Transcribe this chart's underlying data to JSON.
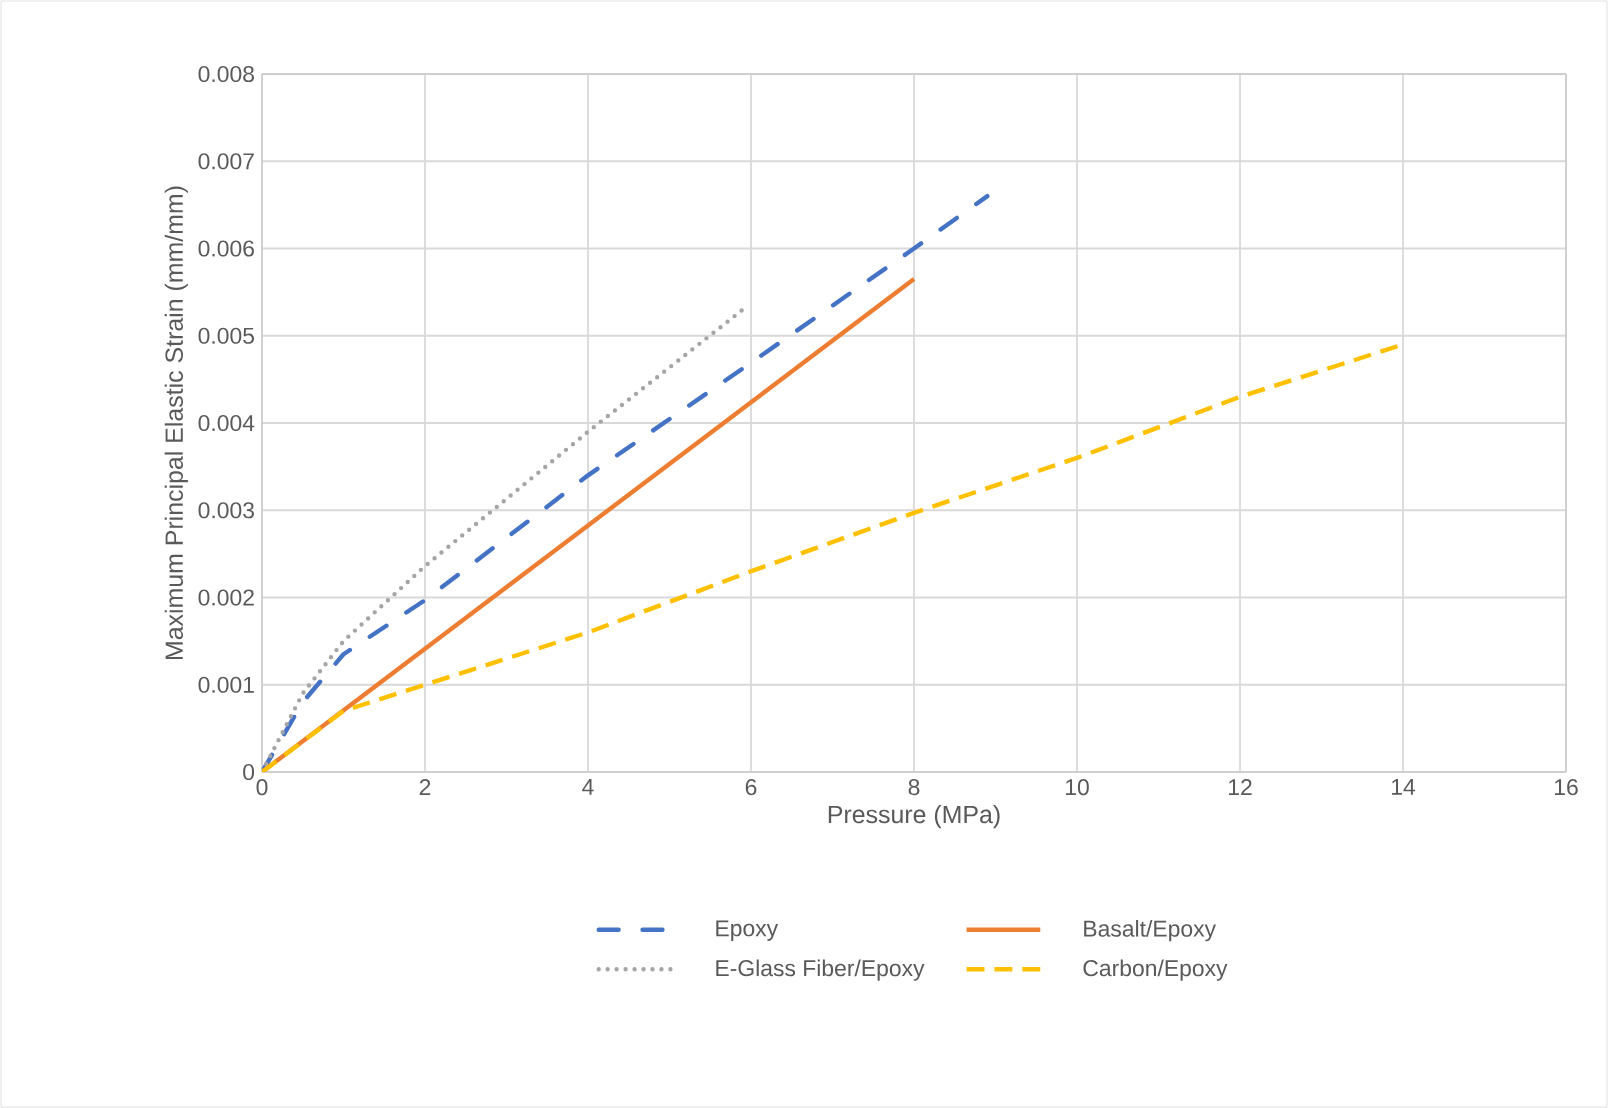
{
  "chart_data": {
    "type": "line",
    "xlabel": "Pressure (MPa)",
    "ylabel": "Maximum Principal Elastic Strain (mm/mm)",
    "xlim": [
      0,
      16
    ],
    "xticks": [
      0,
      2,
      4,
      6,
      8,
      10,
      12,
      14,
      16
    ],
    "ylim": [
      0,
      0.008
    ],
    "yticks": [
      0,
      0.001,
      0.002,
      0.003,
      0.004,
      0.005,
      0.006,
      0.007,
      0.008
    ],
    "grid": true,
    "legend": "bottom",
    "marker": "none",
    "series": [
      {
        "name": "Epoxy",
        "color": "#4472c4",
        "line_style": "dashdot",
        "x": [
          0,
          0.25,
          0.5,
          1,
          2,
          4,
          6,
          8,
          8.9
        ],
        "values": [
          0,
          0.0004,
          0.0008,
          0.00135,
          0.00197,
          0.0034,
          0.00469,
          0.006,
          0.0066
        ]
      },
      {
        "name": "Basalt/Epoxy",
        "color": "#ed7d31",
        "line_style": "solid",
        "x": [
          0,
          8
        ],
        "values": [
          0,
          0.00565
        ]
      },
      {
        "name": "E-Glass Fiber/Epoxy",
        "color": "#a5a5a5",
        "line_style": "dotted",
        "x": [
          0,
          0.5,
          1,
          2,
          4,
          5.9
        ],
        "values": [
          0,
          0.0009,
          0.0015,
          0.00236,
          0.0039,
          0.0053
        ]
      },
      {
        "name": "Carbon/Epoxy",
        "color": "#ffc000",
        "line_style": "dashed",
        "x": [
          0,
          1,
          2,
          4,
          6,
          8,
          10,
          12,
          14
        ],
        "values": [
          0,
          0.0007,
          0.001,
          0.0016,
          0.0023,
          0.00297,
          0.0036,
          0.0043,
          0.0049
        ]
      }
    ]
  }
}
